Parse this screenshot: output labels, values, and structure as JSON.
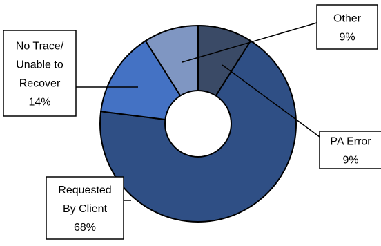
{
  "chart_data": {
    "type": "pie",
    "variant": "doughnut",
    "title": "",
    "slices": [
      {
        "name": "PA Error",
        "label_lines": [
          "PA Error",
          "9%"
        ],
        "value": 9,
        "color": "#2F4F85"
      },
      {
        "name": "Requested By Client",
        "label_lines": [
          "Requested",
          "By Client",
          "68%"
        ],
        "value": 68,
        "color": "#2F4F85"
      },
      {
        "name": "No Trace/ Unable to Recover",
        "label_lines": [
          "No Trace/",
          "Unable to",
          "Recover",
          "14%"
        ],
        "value": 14,
        "color": "#4472C4"
      },
      {
        "name": "Other",
        "label_lines": [
          "Other",
          "9%"
        ],
        "value": 9,
        "color": "#7F96C2"
      }
    ],
    "overlay_slice": {
      "name": "Other",
      "color": "#3A4A66"
    },
    "legend": "none",
    "data_labels": "callouts"
  }
}
